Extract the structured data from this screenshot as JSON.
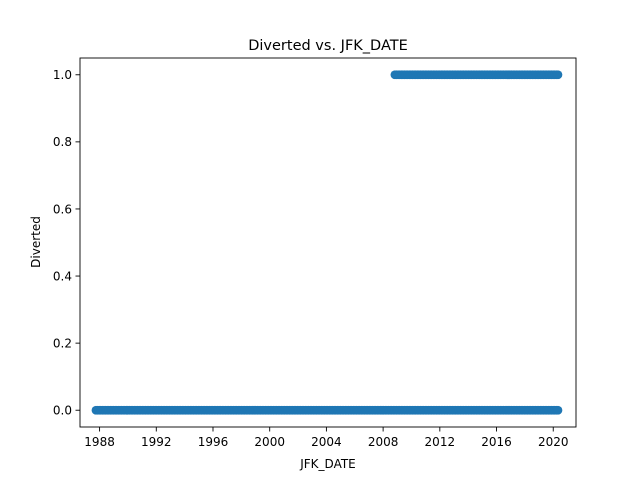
{
  "chart_data": {
    "type": "scatter",
    "title": "Diverted vs. JFK_DATE",
    "xlabel": "JFK_DATE",
    "ylabel": "Diverted",
    "x_ticks": [
      "1988",
      "1992",
      "1996",
      "2000",
      "2004",
      "2008",
      "2012",
      "2016",
      "2020"
    ],
    "y_ticks": [
      "0.0",
      "0.2",
      "0.4",
      "0.6",
      "0.8",
      "1.0"
    ],
    "xlim": [
      "1986-08-15",
      "2021-08-10"
    ],
    "ylim": [
      -0.05,
      1.05
    ],
    "grid": false,
    "legend": "none",
    "marker_color": "#1f77b4",
    "series": [
      {
        "x_range": [
          "1987-10-01",
          "2020-05-01"
        ],
        "y": 0
      },
      {
        "x_range": [
          "2008-11-01",
          "2020-05-01"
        ],
        "y": 1
      }
    ]
  }
}
